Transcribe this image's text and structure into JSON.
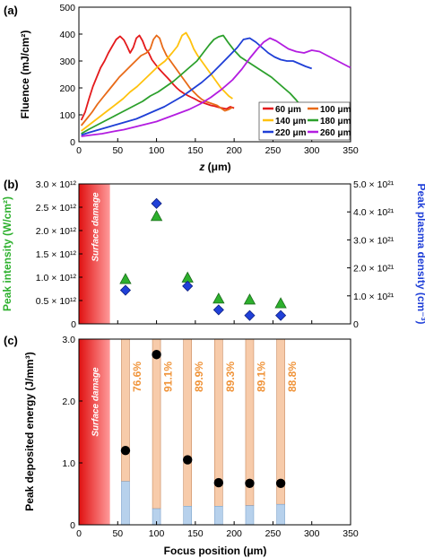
{
  "panel_labels": [
    "(a)",
    "(b)",
    "(c)"
  ],
  "surface_damage_label": "Surface damage",
  "chart_data": [
    {
      "type": "line",
      "panel": "(a)",
      "xlabel_prefix": "z",
      "xlabel_unit": " (μm)",
      "ylabel": "Fluence (mJ/cm²)",
      "xlim": [
        0,
        350
      ],
      "ylim": [
        0,
        500
      ],
      "xticks": [
        0,
        50,
        100,
        150,
        200,
        250,
        300,
        350
      ],
      "yticks": [
        0,
        100,
        200,
        300,
        400,
        500
      ],
      "legend_position": "bottom-right",
      "series": [
        {
          "name": "60 μm",
          "color": "#e41a1c",
          "x": [
            3,
            8,
            13,
            18,
            23,
            28,
            33,
            38,
            43,
            48,
            53,
            58,
            62,
            66,
            70,
            74,
            78,
            82,
            86,
            90,
            94,
            98,
            102,
            106,
            110,
            114,
            118,
            122,
            126,
            130,
            135,
            140,
            145,
            150,
            155,
            160,
            165,
            170,
            175,
            180,
            185,
            190,
            195,
            200
          ],
          "y": [
            80,
            110,
            160,
            205,
            240,
            275,
            300,
            330,
            355,
            380,
            392,
            378,
            355,
            330,
            350,
            385,
            395,
            375,
            345,
            330,
            305,
            290,
            275,
            262,
            250,
            238,
            225,
            212,
            200,
            190,
            180,
            172,
            165,
            158,
            150,
            145,
            140,
            135,
            132,
            128,
            125,
            122,
            130,
            125
          ]
        },
        {
          "name": "100 μm",
          "color": "#e86a17",
          "x": [
            3,
            10,
            17,
            24,
            31,
            38,
            45,
            52,
            59,
            66,
            73,
            80,
            87,
            92,
            96,
            100,
            104,
            108,
            113,
            118,
            123,
            128,
            133,
            138,
            143,
            148,
            153,
            158,
            163,
            168,
            173,
            178,
            183,
            188,
            193,
            198
          ],
          "y": [
            60,
            85,
            110,
            140,
            165,
            190,
            215,
            240,
            260,
            280,
            300,
            320,
            330,
            345,
            380,
            395,
            385,
            350,
            320,
            300,
            280,
            260,
            240,
            220,
            200,
            185,
            170,
            158,
            150,
            145,
            140,
            135,
            125,
            115,
            120,
            128
          ]
        },
        {
          "name": "140 μm",
          "color": "#ffc20e",
          "x": [
            3,
            12,
            21,
            30,
            39,
            48,
            57,
            66,
            75,
            84,
            93,
            102,
            111,
            120,
            127,
            133,
            138,
            143,
            148,
            153,
            158,
            163,
            168,
            173,
            178,
            183,
            188,
            193,
            198
          ],
          "y": [
            40,
            60,
            80,
            100,
            120,
            140,
            160,
            185,
            205,
            230,
            255,
            280,
            300,
            330,
            355,
            395,
            405,
            380,
            345,
            320,
            300,
            280,
            260,
            240,
            220,
            200,
            185,
            170,
            160
          ]
        },
        {
          "name": "180 μm",
          "color": "#2ca02c",
          "x": [
            3,
            12,
            22,
            32,
            42,
            52,
            62,
            72,
            82,
            92,
            102,
            112,
            122,
            132,
            142,
            152,
            160,
            168,
            174,
            180,
            186,
            192,
            200,
            208,
            216,
            224,
            232,
            240,
            248,
            256,
            264,
            272,
            280,
            288,
            296
          ],
          "y": [
            30,
            45,
            60,
            75,
            90,
            105,
            120,
            135,
            150,
            170,
            185,
            205,
            225,
            250,
            275,
            300,
            330,
            360,
            380,
            390,
            395,
            370,
            340,
            315,
            300,
            285,
            270,
            255,
            240,
            220,
            200,
            180,
            155,
            125,
            95
          ]
        },
        {
          "name": "220 μm",
          "color": "#1f3fd6",
          "x": [
            3,
            14,
            26,
            38,
            50,
            62,
            74,
            86,
            98,
            110,
            122,
            134,
            146,
            158,
            170,
            182,
            194,
            204,
            212,
            220,
            228,
            236,
            244,
            252,
            260,
            268,
            276,
            284,
            292,
            300
          ],
          "y": [
            25,
            35,
            45,
            55,
            65,
            75,
            85,
            100,
            115,
            130,
            150,
            170,
            195,
            220,
            250,
            285,
            320,
            350,
            380,
            385,
            370,
            350,
            330,
            315,
            305,
            300,
            300,
            290,
            280,
            272
          ]
        },
        {
          "name": "260 μm",
          "color": "#b31de0",
          "x": [
            3,
            16,
            30,
            44,
            58,
            72,
            86,
            100,
            114,
            128,
            142,
            156,
            170,
            184,
            198,
            210,
            220,
            230,
            238,
            246,
            254,
            262,
            270,
            280,
            290,
            300,
            310,
            320,
            330,
            340,
            350
          ],
          "y": [
            20,
            25,
            30,
            38,
            45,
            55,
            65,
            75,
            90,
            105,
            120,
            140,
            165,
            195,
            230,
            270,
            310,
            345,
            370,
            385,
            375,
            360,
            345,
            335,
            330,
            340,
            335,
            320,
            305,
            290,
            275
          ]
        }
      ]
    },
    {
      "type": "scatter",
      "panel": "(b)",
      "ylabel_left": "Peak intensity (W/cm²)",
      "ylabel_right": "Peak plasma density (cm⁻³)",
      "xlim": [
        0,
        350
      ],
      "ylim_left": [
        0,
        3000000000000.0
      ],
      "ylim_right": [
        0,
        5e+21
      ],
      "yticks_left": [
        "0",
        "0.5 × 10¹²",
        "1.0 × 10¹²",
        "1.5 × 10¹²",
        "2.0 × 10¹²",
        "2.5 × 10¹²",
        "3.0 × 10¹²"
      ],
      "yticks_right": [
        "0",
        "1.0 × 10²¹",
        "2.0 × 10²¹",
        "3.0 × 10²¹",
        "4.0 × 10²¹",
        "5.0 × 10²¹"
      ],
      "surface_damage_xrange": [
        0,
        40
      ],
      "series": [
        {
          "name": "Peak intensity",
          "axis": "left",
          "marker": "triangle",
          "color": "#2db02d",
          "x": [
            60,
            100,
            140,
            180,
            220,
            260
          ],
          "y": [
            970000000000.0,
            2320000000000.0,
            1000000000000.0,
            550000000000.0,
            530000000000.0,
            450000000000.0
          ]
        },
        {
          "name": "Peak plasma density",
          "axis": "right",
          "marker": "diamond",
          "color": "#2040d8",
          "x": [
            60,
            100,
            140,
            180,
            220,
            260
          ],
          "y": [
            1.2e+21,
            4.3e+21,
            1.35e+21,
            5e+20,
            3e+20,
            3e+20
          ]
        }
      ]
    },
    {
      "type": "bar",
      "panel": "(c)",
      "xlabel": "Focus position (μm)",
      "ylabel": "Peak deposited energy (J/mm³)",
      "xlim": [
        0,
        350
      ],
      "ylim": [
        0,
        3.0
      ],
      "xticks": [
        0,
        50,
        100,
        150,
        200,
        250,
        300,
        350
      ],
      "yticks": [
        "0",
        "1.0",
        "2.0",
        "3.0"
      ],
      "surface_damage_xrange": [
        0,
        40
      ],
      "bar_total": 3.0,
      "bar_colors": {
        "lower": "#b7d1ec",
        "upper": "#f7cbaa",
        "points": "#000000",
        "labels": "#f0943a"
      },
      "x": [
        60,
        100,
        140,
        180,
        220,
        260
      ],
      "lower_values": [
        0.7,
        0.26,
        0.3,
        0.3,
        0.31,
        0.33
      ],
      "points": [
        1.2,
        2.75,
        1.05,
        0.68,
        0.67,
        0.67
      ],
      "percent_labels": [
        "76.6%",
        "91.1%",
        "89.9%",
        "89.3%",
        "89.1%",
        "88.8%"
      ]
    }
  ]
}
